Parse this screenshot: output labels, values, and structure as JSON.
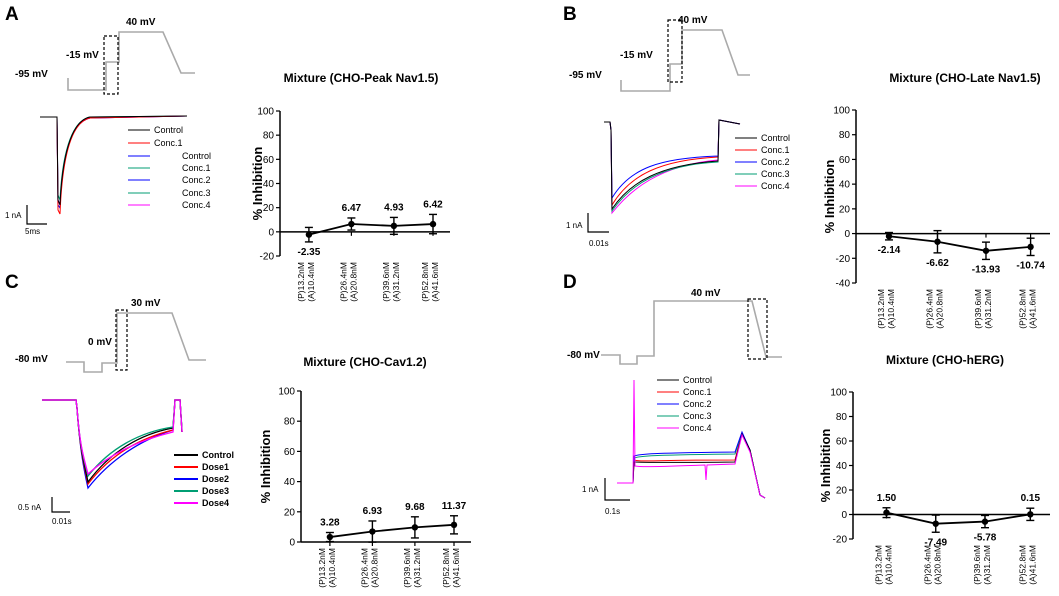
{
  "panels": {
    "A": {
      "letter": "A",
      "protocol": {
        "v_hold": "-95 mV",
        "v_step": "-15 mV",
        "v_peak": "40 mV"
      },
      "legend": [
        "Control",
        "Conc.1",
        "Control",
        "Conc.1",
        "Conc.2",
        "Conc.3",
        "Conc.4"
      ],
      "legend_colors": [
        "#000000",
        "#ff0000",
        "#0000ff",
        "#ff0000",
        "#0000ff",
        "#009e73",
        "#ff00ff"
      ],
      "scale": {
        "current": "1 nA",
        "time": "5ms"
      }
    },
    "B": {
      "letter": "B",
      "protocol": {
        "v_hold": "-95 mV",
        "v_step": "-15 mV",
        "v_peak": "40 mV"
      },
      "legend": [
        "Control",
        "Conc.1",
        "Conc.2",
        "Conc.3",
        "Conc.4"
      ],
      "legend_colors": [
        "#000000",
        "#ff0000",
        "#0000ff",
        "#009e73",
        "#ff00ff"
      ],
      "scale": {
        "current": "1 nA",
        "time": "0.01s"
      }
    },
    "C": {
      "letter": "C",
      "protocol": {
        "v_hold": "-80 mV",
        "v_step": "0 mV",
        "v_peak": "30 mV"
      },
      "legend": [
        "Control",
        "Dose1",
        "Dose2",
        "Dose3",
        "Dose4"
      ],
      "legend_colors": [
        "#000000",
        "#ff0000",
        "#0000ff",
        "#009e73",
        "#ff00ff"
      ],
      "scale": {
        "current": "0.5 nA",
        "time": "0.01s"
      }
    },
    "D": {
      "letter": "D",
      "protocol": {
        "v_hold": "-80 mV",
        "v_peak": "40 mV"
      },
      "legend": [
        "Control",
        "Conc.1",
        "Conc.2",
        "Conc.3",
        "Conc.4"
      ],
      "legend_colors": [
        "#000000",
        "#ff0000",
        "#0000ff",
        "#009e73",
        "#ff00ff"
      ],
      "scale": {
        "current": "1 nA",
        "time": "0.1s"
      }
    }
  },
  "chart_data": [
    {
      "id": "A",
      "type": "line",
      "title": "Mixture (CHO-Peak Nav1.5)",
      "ylabel": "% Inhibition",
      "ylim": [
        -20,
        100
      ],
      "yticks": [
        -20,
        0,
        20,
        40,
        60,
        80,
        100
      ],
      "categories": [
        "(P)13.2nM (A)10.4nM",
        "(P)26.4nM (A)20.8nM",
        "(P)39.6nM (A)31.2nM",
        "(P)52.8nM (A)41.6nM"
      ],
      "category_lines": [
        [
          "(P)13.2nM",
          "(A)10.4nM"
        ],
        [
          "(P)26.4nM",
          "(A)20.8nM"
        ],
        [
          "(P)39.6nM",
          "(A)31.2nM"
        ],
        [
          "(P)52.8nM",
          "(A)41.6nM"
        ]
      ],
      "values": [
        -2.35,
        6.47,
        4.93,
        6.42
      ],
      "labels": [
        "-2.35",
        "6.47",
        "4.93",
        "6.42"
      ],
      "errors": [
        6,
        5,
        7,
        8
      ]
    },
    {
      "id": "B",
      "type": "line",
      "title": "Mixture (CHO-Late Nav1.5)",
      "ylabel": "% Inhibition",
      "ylim": [
        -40,
        100
      ],
      "yticks": [
        -40,
        -20,
        0,
        20,
        40,
        60,
        80,
        100
      ],
      "categories": [
        "(P)13.2nM (A)10.4nM",
        "(P)26.4nM (A)20.8nM",
        "(P)39.6nM (A)31.2nM",
        "(P)52.8nM (A)41.6nM"
      ],
      "category_lines": [
        [
          "(P)13.2nM",
          "(A)10.4nM"
        ],
        [
          "(P)26.4nM",
          "(A)20.8nM"
        ],
        [
          "(P)39.6nM",
          "(A)31.2nM"
        ],
        [
          "(P)52.8nM",
          "(A)41.6nM"
        ]
      ],
      "values": [
        -2.14,
        -6.62,
        -13.93,
        -10.74
      ],
      "labels": [
        "-2.14",
        "-6.62",
        "-13.93",
        "-10.74"
      ],
      "errors": [
        3,
        9,
        7,
        7
      ]
    },
    {
      "id": "C",
      "type": "line",
      "title": "Mixture (CHO-Cav1.2)",
      "ylabel": "% Inhibition",
      "ylim": [
        0,
        100
      ],
      "yticks": [
        0,
        20,
        40,
        60,
        80,
        100
      ],
      "categories": [
        "(P)13.2nM (A)10.4nM",
        "(P)26.4nM (A)20.8nM",
        "(P)39.6nM (A)31.2nM",
        "(P)52.8nM (A)41.6nM"
      ],
      "category_lines": [
        [
          "(P)13.2nM",
          "(A)10.4nM"
        ],
        [
          "(P)26.4nM",
          "(A)20.8nM"
        ],
        [
          "(P)39.6nM",
          "(A)31.2nM"
        ],
        [
          "(P)52.8nM",
          "(A)41.6nM"
        ]
      ],
      "values": [
        3.28,
        6.93,
        9.68,
        11.37
      ],
      "labels": [
        "3.28",
        "6.93",
        "9.68",
        "11.37"
      ],
      "errors": [
        3,
        7,
        7,
        6
      ]
    },
    {
      "id": "D",
      "type": "line",
      "title": "Mixture (CHO-hERG)",
      "ylabel": "% Inhibition",
      "ylim": [
        -20,
        100
      ],
      "yticks": [
        -20,
        0,
        20,
        40,
        60,
        80,
        100
      ],
      "categories": [
        "(P)13.2nM (A)10.4nM",
        "(P)26.4nM (A)20.8nM",
        "(P)39.6nM (A)31.2nM",
        "(P)52.8nM (A)41.6nM"
      ],
      "category_lines": [
        [
          "(P)13.2nM",
          "(A)10.4nM"
        ],
        [
          "(P)26.4nM",
          "(A)20.8nM"
        ],
        [
          "(P)39.6nM",
          "(A)31.2nM"
        ],
        [
          "(P)52.8nM",
          "(A)41.6nM"
        ]
      ],
      "values": [
        1.5,
        -7.49,
        -5.78,
        0.15
      ],
      "labels": [
        "1.50",
        "-7.49",
        "-5.78",
        "0.15"
      ],
      "errors": [
        4,
        7,
        5,
        5
      ]
    }
  ]
}
